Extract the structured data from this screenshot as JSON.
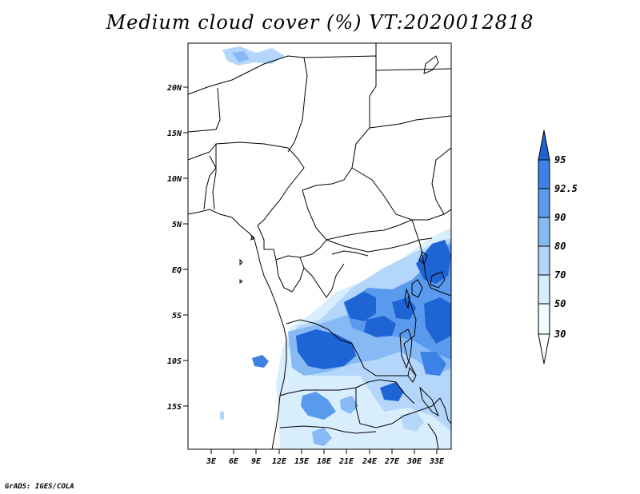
{
  "title": "Medium cloud cover (%) VT:2020012818",
  "footer": "GrADS: IGES/COLA",
  "lat_ticks": [
    "20N",
    "15N",
    "10N",
    "5N",
    "EQ",
    "5S",
    "10S",
    "15S"
  ],
  "lon_ticks": [
    "3E",
    "6E",
    "9E",
    "12E",
    "15E",
    "18E",
    "21E",
    "24E",
    "27E",
    "30E",
    "33E"
  ],
  "colorbar": {
    "labels": [
      "95",
      "92.5",
      "90",
      "80",
      "70",
      "50",
      "30"
    ],
    "colors": [
      "#1f64d4",
      "#3c82e6",
      "#5a9aee",
      "#87b9f5",
      "#b4d6fb",
      "#d9eefd",
      "#f0fbff"
    ]
  }
}
